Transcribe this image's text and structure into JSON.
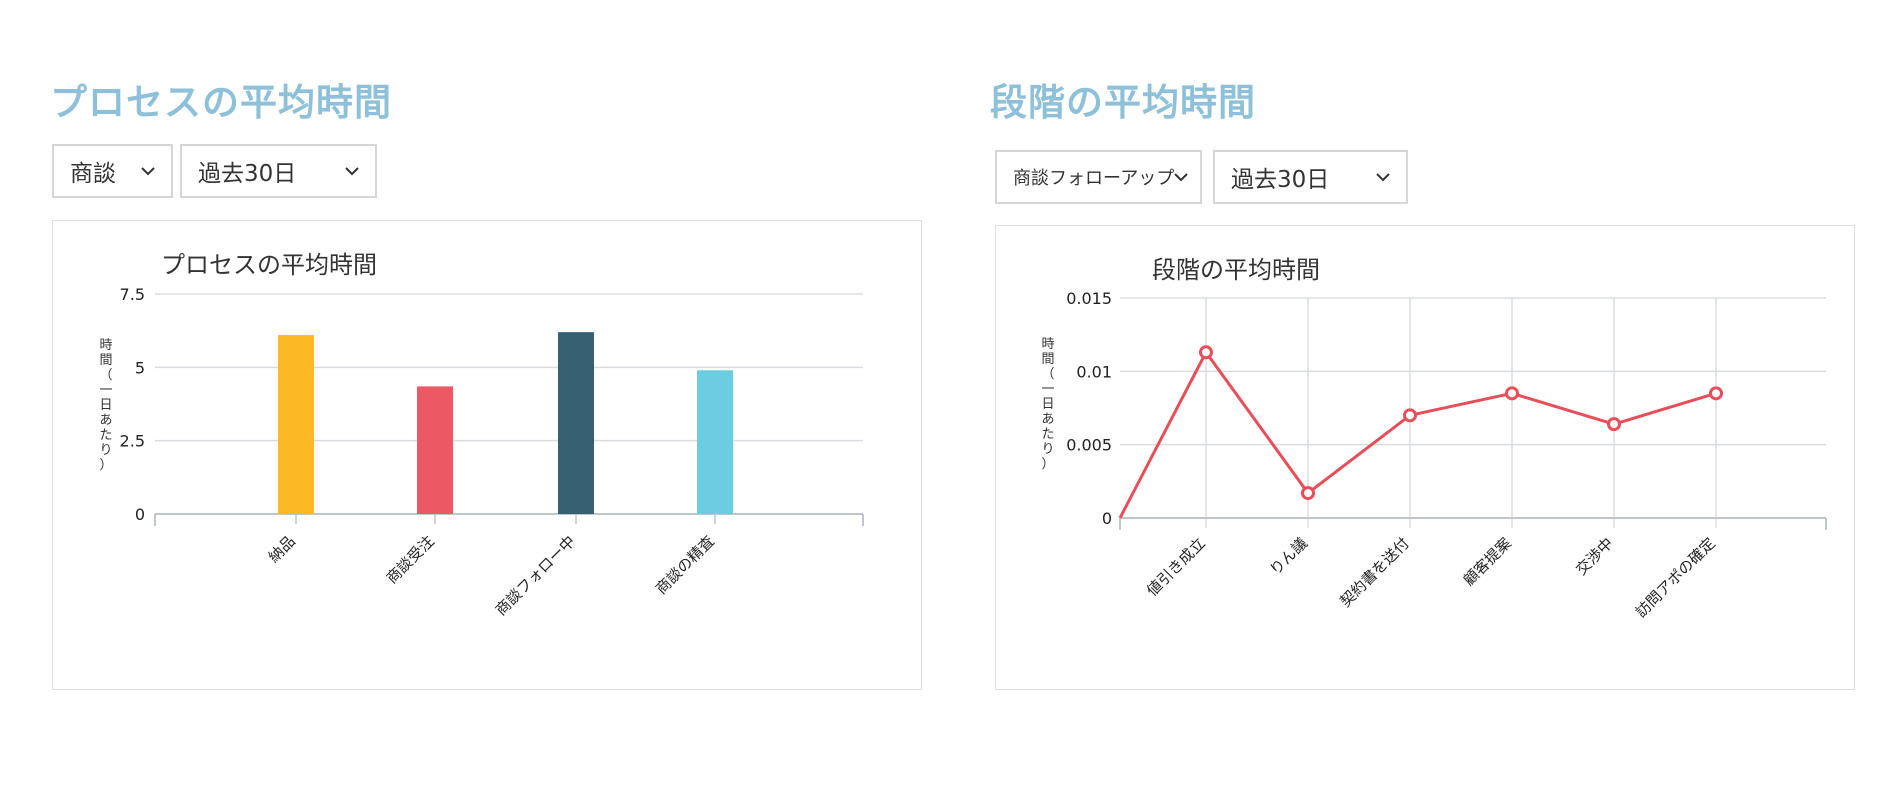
{
  "left": {
    "title": "プロセスの平均時間",
    "dropdown1": "商談",
    "dropdown2": "過去30日",
    "chart_title": "プロセスの平均時間"
  },
  "right": {
    "title": "段階の平均時間",
    "dropdown1": "商談フォローアップ",
    "dropdown2": "過去30日",
    "chart_title": "段階の平均時間"
  },
  "chart_data": [
    {
      "type": "bar",
      "title": "プロセスの平均時間",
      "ylabel": "時間（一日あたり）",
      "xlabel": "",
      "categories": [
        "納品",
        "商談受注",
        "商談フォロー中",
        "商談の精査"
      ],
      "values": [
        6.1,
        4.35,
        6.2,
        4.9
      ],
      "colors": [
        "#fdb924",
        "#ec5863",
        "#376172",
        "#6ccce2"
      ],
      "ylim": [
        0,
        7.5
      ],
      "yticks": [
        "0",
        "2.5",
        "5",
        "7.5"
      ],
      "ytick_values": [
        0,
        2.5,
        5,
        7.5
      ],
      "grid": true
    },
    {
      "type": "line",
      "title": "段階の平均時間",
      "ylabel": "時間（一日あたり）",
      "xlabel": "",
      "categories": [
        "値引き成立",
        "りん議",
        "契約書を送付",
        "顧客提案",
        "交渉中",
        "訪問アポの確定"
      ],
      "values": [
        0.0113,
        0.0017,
        0.007,
        0.0085,
        0.0064,
        0.0085
      ],
      "start_value": 0,
      "color": "#e84e59",
      "ylim": [
        0,
        0.015
      ],
      "yticks": [
        "0",
        "0.005",
        "0.01",
        "0.015"
      ],
      "ytick_values": [
        0,
        0.005,
        0.01,
        0.015
      ],
      "grid": true
    }
  ]
}
